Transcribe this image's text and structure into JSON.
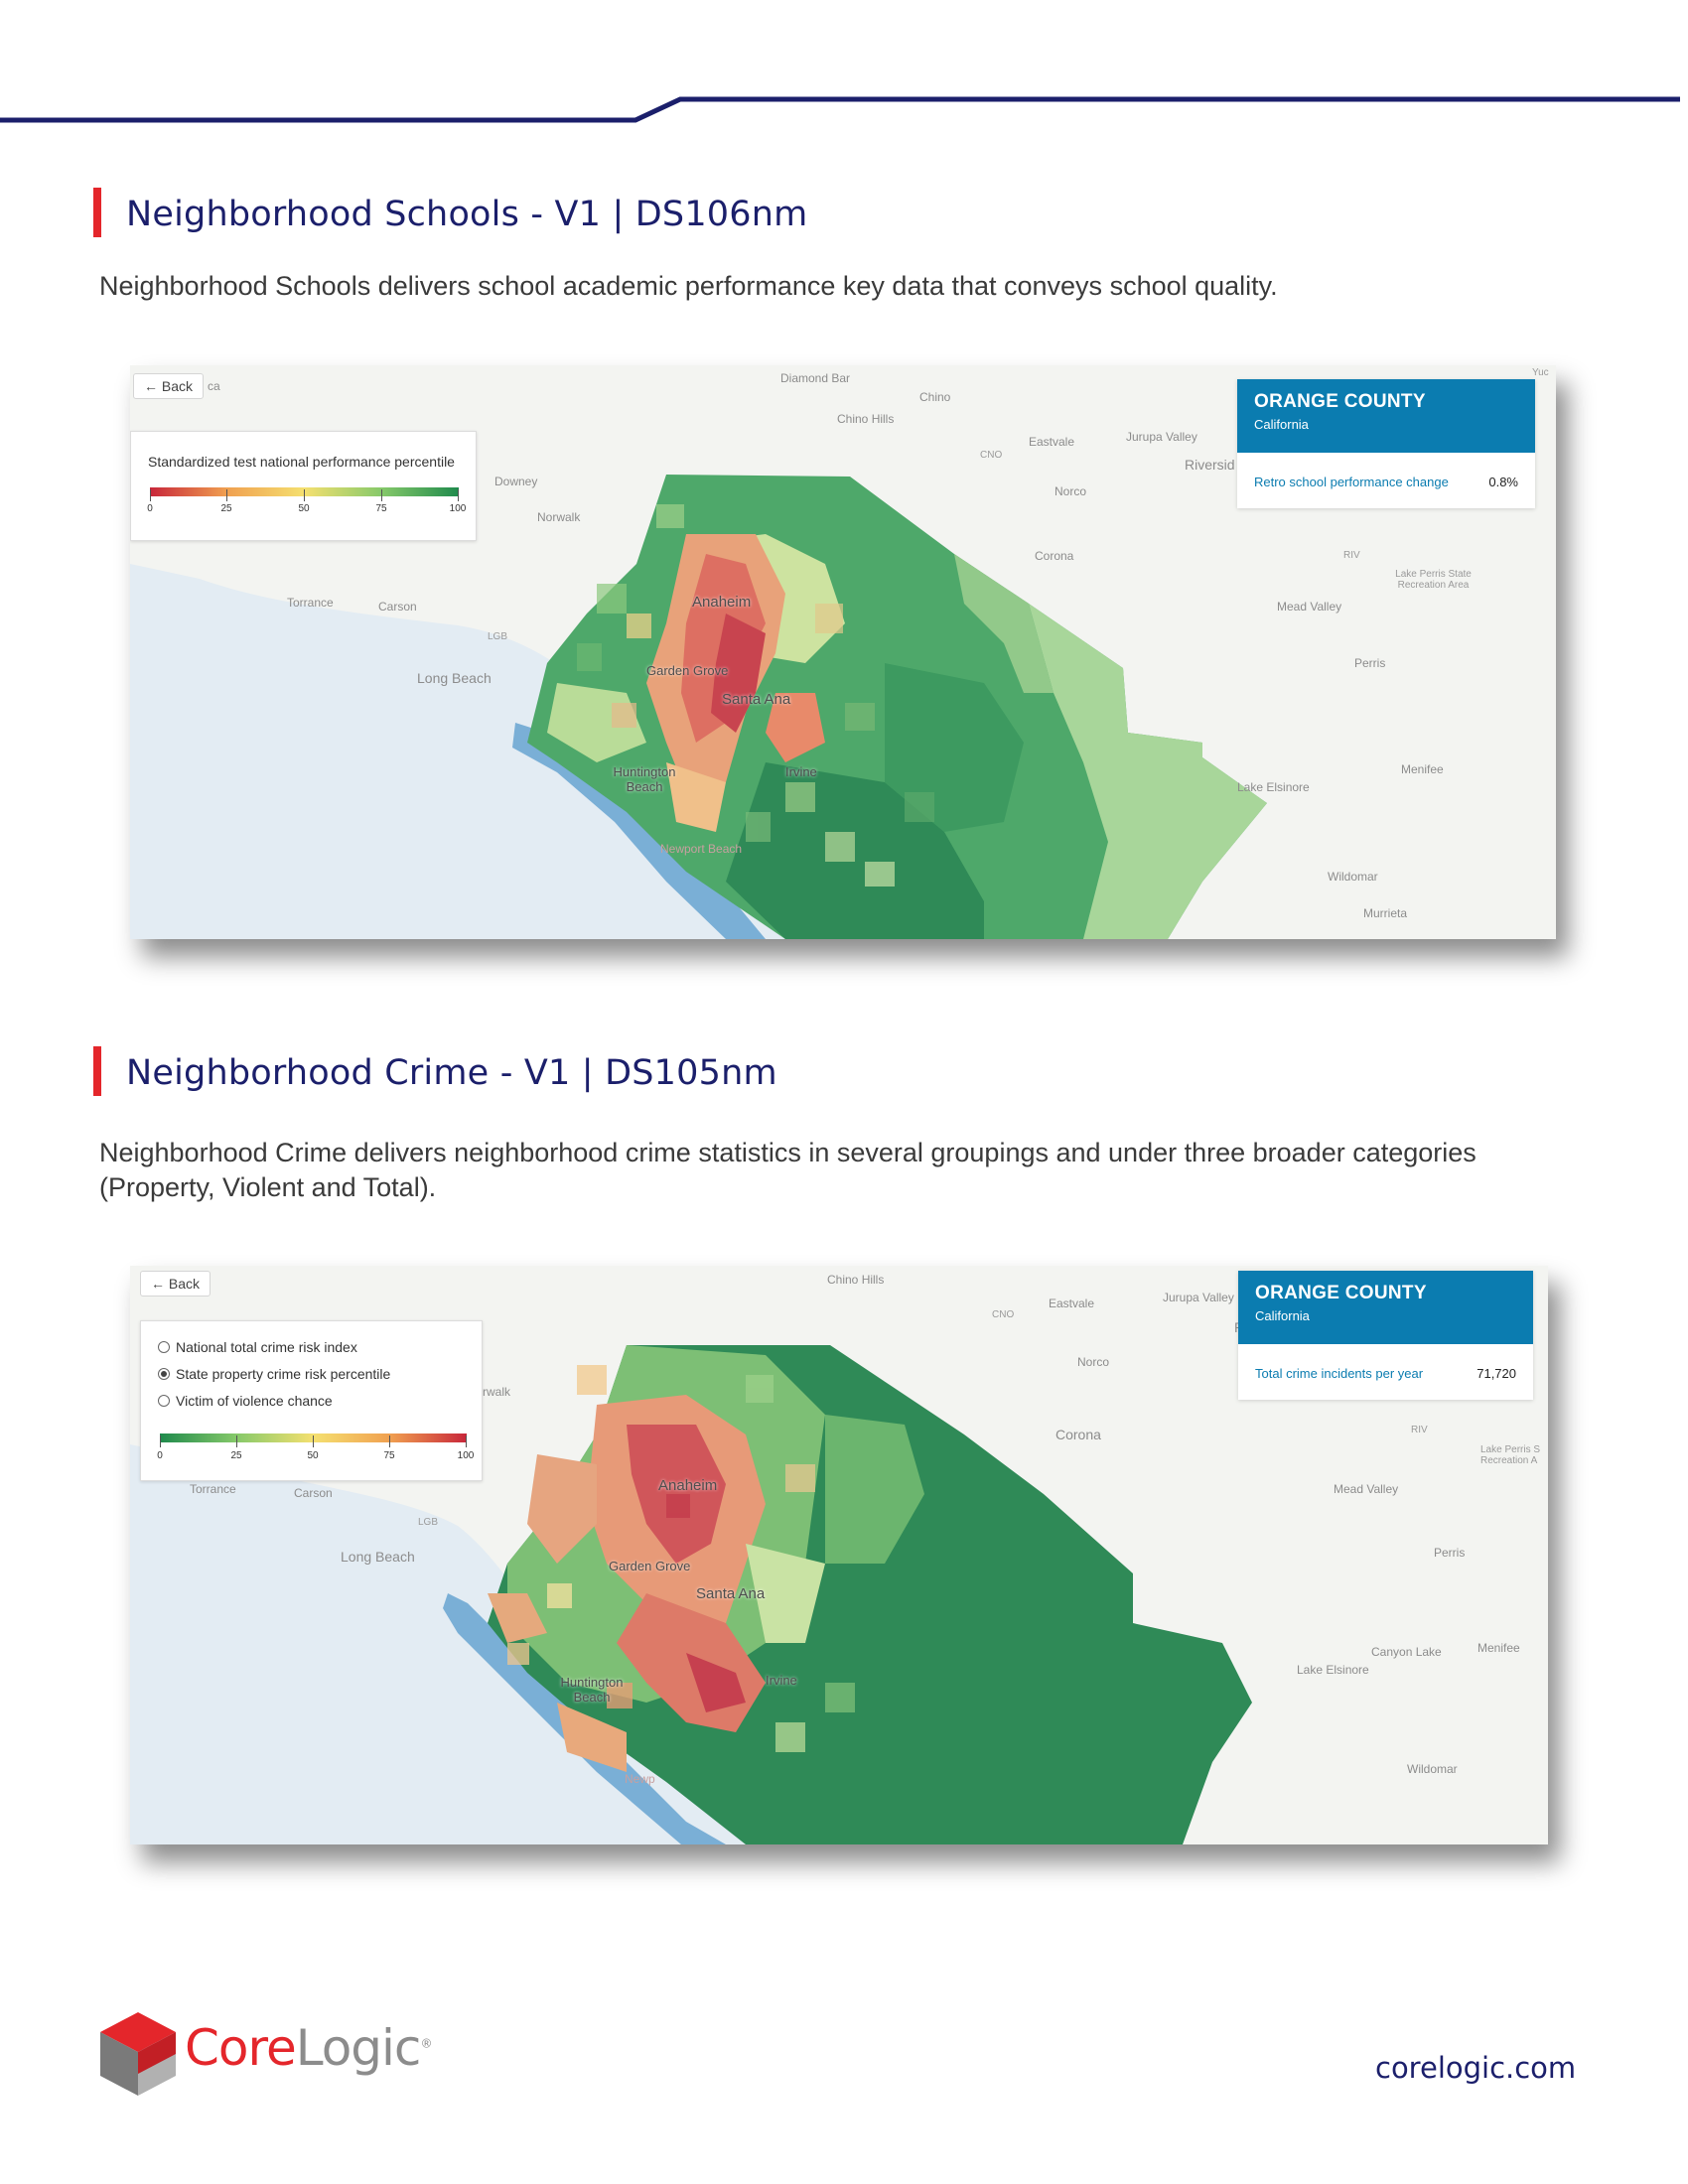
{
  "sections": [
    {
      "title": "Neighborhood Schools - V1 | DS106nm",
      "description": "Neighborhood Schools delivers school academic performance key data that conveys school quality.",
      "map": {
        "back_label": "Back",
        "legend": {
          "title": "Standardized test national performance percentile",
          "ticks": [
            "0",
            "25",
            "50",
            "75",
            "100"
          ],
          "scale": "red-to-green"
        },
        "card": {
          "name": "ORANGE COUNTY",
          "state": "California",
          "metric_label": "Retro school performance change",
          "metric_value": "0.8%"
        },
        "places": {
          "ca": "ca",
          "diamond_bar": "Diamond Bar",
          "chino": "Chino",
          "chino_hills": "Chino Hills",
          "eastvale": "Eastvale",
          "jurupa": "Jurupa Valley",
          "riverside": "Riversid",
          "cno": "CNO",
          "downey": "Downey",
          "norwalk": "Norwalk",
          "norco": "Norco",
          "corona": "Corona",
          "riv": "RIV",
          "lake_perris": "Lake Perris State Recreation Area",
          "torrance": "Torrance",
          "carson": "Carson",
          "mead_valley": "Mead Valley",
          "lgb": "LGB",
          "long_beach": "Long Beach",
          "perris": "Perris",
          "menifee": "Menifee",
          "lake_elsinore": "Lake Elsinore",
          "wildomar": "Wildomar",
          "murrieta": "Murrieta",
          "yuc": "Yuc",
          "newport": "Newport Beach",
          "anaheim": "Anaheim",
          "garden_grove": "Garden Grove",
          "santa_ana": "Santa Ana",
          "huntington": "Huntington Beach",
          "irvine": "Irvine"
        }
      }
    },
    {
      "title": "Neighborhood Crime - V1 | DS105nm",
      "description": "Neighborhood Crime delivers neighborhood crime statistics in several groupings and under three broader categories (Property, Violent and Total).",
      "map": {
        "back_label": "Back",
        "legend": {
          "options": [
            {
              "label": "National total crime risk index",
              "selected": false
            },
            {
              "label": "State property crime risk percentile",
              "selected": true
            },
            {
              "label": "Victim of violence chance",
              "selected": false
            }
          ],
          "ticks": [
            "0",
            "25",
            "50",
            "75",
            "100"
          ],
          "scale": "green-to-red"
        },
        "card": {
          "name": "ORANGE COUNTY",
          "state": "California",
          "metric_label": "Total crime incidents per year",
          "metric_value": "71,720"
        },
        "places": {
          "chino_hills": "Chino Hills",
          "eastvale": "Eastvale",
          "jurupa": "Jurupa Valley",
          "ri": "Ri",
          "cno": "CNO",
          "norwalk": "rwalk",
          "norco": "Norco",
          "corona": "Corona",
          "riv": "RIV",
          "lake_perris": "Lake Perris S Recreation A",
          "torrance": "Torrance",
          "carson": "Carson",
          "mead_valley": "Mead Valley",
          "lgb": "LGB",
          "long_beach": "Long Beach",
          "perris": "Perris",
          "canyon_lake": "Canyon Lake",
          "menifee": "Menifee",
          "lake_elsinore": "Lake Elsinore",
          "wildomar": "Wildomar",
          "newport": "Newp",
          "anaheim": "Anaheim",
          "garden_grove": "Garden Grove",
          "santa_ana": "Santa Ana",
          "huntington": "Huntington Beach",
          "irvine": "Irvine"
        }
      }
    }
  ],
  "footer": {
    "logo_core": "Core",
    "logo_logic": "Logic",
    "logo_mark": "®",
    "website": "corelogic.com"
  },
  "colors": {
    "header_rule": "#1b1f6b",
    "accent_bar": "#e4262b",
    "card_header": "#0b7cb0",
    "brand_red": "#e4262b",
    "brand_gray": "#8c8c8c"
  }
}
